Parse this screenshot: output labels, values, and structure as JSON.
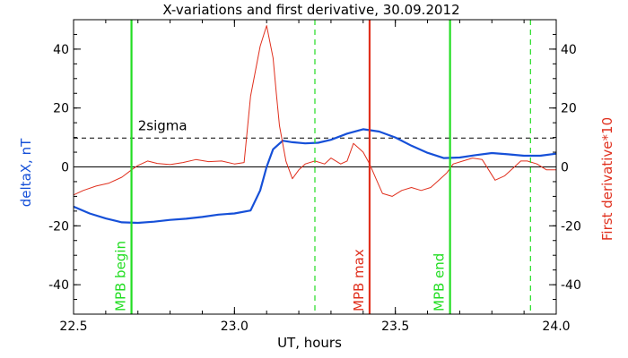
{
  "chart_data": {
    "type": "line",
    "title": "X-variations and first derivative, 30.09.2012",
    "xlabel": "UT, hours",
    "ylabel_left": "deltaX, nT",
    "ylabel_right": "First derivative*10",
    "xlim": [
      22.5,
      24.0
    ],
    "ylim": [
      -50,
      50
    ],
    "x_ticks": [
      22.5,
      23.0,
      23.5,
      24.0
    ],
    "x_tick_labels": [
      "22.5",
      "23.0",
      "23.5",
      "24.0"
    ],
    "y_ticks": [
      -40,
      -20,
      0,
      20,
      40
    ],
    "y_tick_labels": [
      "-40",
      "-20",
      "0",
      "20",
      "40"
    ],
    "grid": false,
    "colors": {
      "deltaX": "#1650d8",
      "derivative": "#e0301e",
      "mpb_edge": "#22dd22",
      "mpb_max": "#e0301e",
      "threshold": "#000000"
    },
    "threshold": {
      "label": "2sigma",
      "value": 9.8
    },
    "zero_line": 0,
    "series": [
      {
        "key": "deltaX",
        "x": [
          22.5,
          22.55,
          22.6,
          22.65,
          22.7,
          22.75,
          22.8,
          22.85,
          22.9,
          22.95,
          23.0,
          23.05,
          23.08,
          23.1,
          23.12,
          23.15,
          23.18,
          23.22,
          23.26,
          23.3,
          23.35,
          23.4,
          23.45,
          23.5,
          23.55,
          23.6,
          23.65,
          23.7,
          23.75,
          23.8,
          23.85,
          23.9,
          23.95,
          24.0
        ],
        "y": [
          -13.5,
          -15.8,
          -17.5,
          -18.8,
          -19.0,
          -18.6,
          -18.0,
          -17.6,
          -17.0,
          -16.2,
          -15.8,
          -14.8,
          -8.0,
          0.0,
          6.0,
          8.9,
          8.4,
          8.0,
          8.2,
          9.2,
          11.3,
          12.8,
          12.0,
          10.0,
          7.2,
          4.8,
          3.0,
          3.2,
          4.0,
          4.7,
          4.3,
          3.8,
          3.8,
          4.5
        ]
      },
      {
        "key": "derivative",
        "x": [
          22.5,
          22.53,
          22.57,
          22.61,
          22.65,
          22.68,
          22.7,
          22.73,
          22.76,
          22.8,
          22.84,
          22.88,
          22.92,
          22.96,
          23.0,
          23.03,
          23.05,
          23.08,
          23.1,
          23.12,
          23.13,
          23.14,
          23.16,
          23.18,
          23.2,
          23.22,
          23.25,
          23.28,
          23.3,
          23.33,
          23.35,
          23.37,
          23.4,
          23.42,
          23.44,
          23.46,
          23.49,
          23.52,
          23.55,
          23.58,
          23.61,
          23.64,
          23.66,
          23.68,
          23.71,
          23.74,
          23.77,
          23.79,
          23.81,
          23.84,
          23.87,
          23.89,
          23.91,
          23.94,
          23.97,
          24.0
        ],
        "y": [
          -9.5,
          -8.0,
          -6.5,
          -5.5,
          -3.5,
          -1.0,
          0.5,
          2.0,
          1.2,
          0.8,
          1.5,
          2.5,
          1.8,
          2.0,
          1.0,
          1.5,
          24.0,
          41.0,
          48.0,
          37.0,
          25.0,
          14.0,
          2.0,
          -4.0,
          -1.0,
          1.0,
          2.0,
          1.0,
          3.0,
          1.0,
          2.0,
          8.0,
          5.0,
          1.0,
          -4.0,
          -9.0,
          -10.0,
          -8.0,
          -7.0,
          -8.0,
          -7.0,
          -4.0,
          -2.0,
          1.0,
          2.0,
          3.0,
          2.5,
          -1.0,
          -4.5,
          -3.0,
          0.0,
          2.0,
          2.0,
          1.0,
          -1.0,
          -1.0
        ]
      }
    ],
    "markers": [
      {
        "key": "mpb-begin",
        "x": 22.68,
        "label": "MPB begin",
        "style": "solid",
        "color": "#22dd22"
      },
      {
        "key": "mpb-end",
        "x": 23.67,
        "label": "MPB end",
        "style": "solid",
        "color": "#22dd22"
      },
      {
        "key": "mpb-max",
        "x": 23.42,
        "label": "MPB max",
        "style": "solid",
        "color": "#e0301e"
      },
      {
        "key": "dashed-1",
        "x": 23.25,
        "label": "",
        "style": "dashed",
        "color": "#22dd22"
      },
      {
        "key": "dashed-2",
        "x": 23.92,
        "label": "",
        "style": "dashed",
        "color": "#22dd22"
      }
    ]
  }
}
